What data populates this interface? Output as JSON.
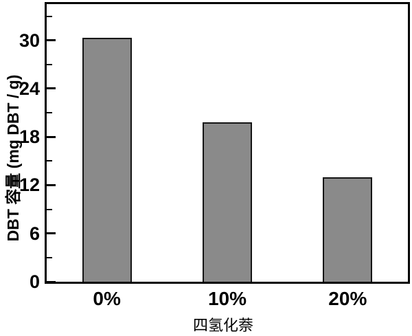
{
  "chart_data": {
    "type": "bar",
    "categories": [
      "0%",
      "10%",
      "20%"
    ],
    "values": [
      30.3,
      19.8,
      13.0
    ],
    "title": "",
    "xlabel": "四氢化萘",
    "ylabel": "DBT 容量 (mg DBT / g)",
    "ylim": [
      0,
      34.5
    ],
    "yticks_major": [
      0,
      6,
      12,
      18,
      24,
      30
    ],
    "yticks_minor": [
      3,
      9,
      15,
      21,
      27,
      33
    ],
    "legend": false,
    "grid": false,
    "colors": {
      "bar_fill": "#8a8a8a",
      "bar_edge": "#141414",
      "axis": "#000000",
      "text": "#000000",
      "background": "#ffffff"
    }
  }
}
